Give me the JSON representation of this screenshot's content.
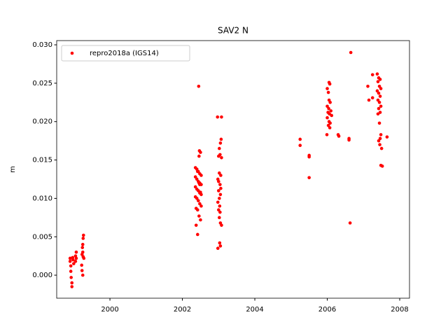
{
  "chart_data": {
    "type": "scatter",
    "title": "SAV2 N",
    "y_label": "m",
    "legend_loc": "upper left",
    "xlim": [
      1998.53,
      2008.27
    ],
    "ylim": [
      -0.003,
      0.03055
    ],
    "xticks": [
      2000,
      2002,
      2004,
      2006,
      2008
    ],
    "yticks": [
      {
        "value": 0,
        "label": "0.000"
      },
      {
        "value": 0.005,
        "label": "0.005"
      },
      {
        "value": 0.01,
        "label": "0.010"
      },
      {
        "value": 0.015,
        "label": "0.015"
      },
      {
        "value": 0.02,
        "label": "0.020"
      },
      {
        "value": 0.025,
        "label": "0.025"
      },
      {
        "value": 0.03,
        "label": "0.030"
      }
    ],
    "x": [
      1998.9,
      1998.9,
      1998.92,
      1998.92,
      1998.93,
      1998.95,
      1998.95,
      1998.97,
      1998.98,
      1999.0,
      1999.05,
      1999.07,
      1999.07,
      1999.05,
      1999.27,
      1999.26,
      1999.25,
      1999.24,
      1999.25,
      1999.23,
      1999.26,
      1999.28,
      1999.22,
      1999.23,
      1999.25,
      2002.36,
      2002.4,
      2002.44,
      2002.48,
      2002.52,
      2002.36,
      2002.4,
      2002.44,
      2002.48,
      2002.52,
      2002.36,
      2002.4,
      2002.44,
      2002.48,
      2002.52,
      2002.36,
      2002.4,
      2002.44,
      2002.48,
      2002.52,
      2002.38,
      2002.42,
      2002.46,
      2002.5,
      2002.38,
      2002.42,
      2002.46,
      2002.5,
      2002.45,
      2002.47,
      2002.42,
      2002.46,
      2002.48,
      2002.5,
      2002.97,
      2003.08,
      2003.07,
      2003.05,
      2003.02,
      2003.04,
      2003.0,
      2003.08,
      2003.02,
      2003.06,
      2002.98,
      2003.0,
      2003.04,
      2003.06,
      2003.0,
      2003.05,
      2003.02,
      2002.98,
      2003.03,
      2003.0,
      2003.04,
      2003.02,
      2003.05,
      2003.08,
      2003.03,
      2003.05,
      2002.98,
      2005.25,
      2005.25,
      2005.5,
      2005.5,
      2005.5,
      2006.05,
      2006.07,
      2006.0,
      2006.03,
      2006.05,
      2006.08,
      2006.0,
      2006.04,
      2006.1,
      2006.02,
      2006.06,
      2006.12,
      2006.0,
      2006.05,
      2006.08,
      2006.03,
      2006.07,
      2005.99,
      2006.3,
      2006.32,
      2006.6,
      2006.6,
      2006.63,
      2006.65,
      2007.12,
      2007.15,
      2007.25,
      2007.25,
      2007.38,
      2007.42,
      2007.46,
      2007.4,
      2007.44,
      2007.48,
      2007.38,
      2007.42,
      2007.46,
      2007.4,
      2007.44,
      2007.48,
      2007.42,
      2007.46,
      2007.4,
      2007.44,
      2007.48,
      2007.46,
      2007.42,
      2007.45,
      2007.5,
      2007.48,
      2007.52,
      2007.65
    ],
    "series": [
      {
        "name": "repro2018a (IGS14)",
        "color": "#ff0000",
        "values": [
          0.0022,
          0.0018,
          0.0012,
          0.0005,
          -0.0003,
          -0.0015,
          -0.001,
          0.0023,
          0.002,
          0.0015,
          0.0025,
          0.003,
          0.0022,
          0.0018,
          0.0052,
          0.0048,
          0.004,
          0.0036,
          0.003,
          0.0027,
          0.0024,
          0.0022,
          0.0013,
          0.0006,
          0.0,
          0.014,
          0.0138,
          0.0135,
          0.0132,
          0.013,
          0.0128,
          0.0125,
          0.0122,
          0.012,
          0.0118,
          0.0115,
          0.0112,
          0.011,
          0.0107,
          0.0105,
          0.0102,
          0.01,
          0.0097,
          0.0093,
          0.009,
          0.0087,
          0.0085,
          0.0077,
          0.0072,
          0.0065,
          0.0053,
          0.0155,
          0.016,
          0.0246,
          0.0162,
          0.0135,
          0.012,
          0.0118,
          0.0108,
          0.0206,
          0.0206,
          0.0177,
          0.0172,
          0.0165,
          0.0157,
          0.0155,
          0.0153,
          0.0133,
          0.013,
          0.0125,
          0.0122,
          0.0118,
          0.0113,
          0.011,
          0.0105,
          0.01,
          0.0095,
          0.009,
          0.0085,
          0.0082,
          0.0075,
          0.0068,
          0.0065,
          0.0042,
          0.0038,
          0.0035,
          0.0177,
          0.0169,
          0.0156,
          0.0154,
          0.0127,
          0.0251,
          0.0249,
          0.0243,
          0.0238,
          0.0228,
          0.0225,
          0.022,
          0.0217,
          0.0214,
          0.0212,
          0.021,
          0.0208,
          0.0205,
          0.02,
          0.0198,
          0.0195,
          0.0192,
          0.0183,
          0.0183,
          0.0181,
          0.0178,
          0.0176,
          0.0068,
          0.029,
          0.0246,
          0.0228,
          0.0261,
          0.0231,
          0.0262,
          0.0257,
          0.0255,
          0.0252,
          0.0246,
          0.0243,
          0.024,
          0.0237,
          0.0233,
          0.0228,
          0.0225,
          0.022,
          0.0217,
          0.0212,
          0.021,
          0.0198,
          0.0183,
          0.0178,
          0.0175,
          0.017,
          0.0165,
          0.0143,
          0.0142,
          0.018
        ]
      }
    ]
  }
}
